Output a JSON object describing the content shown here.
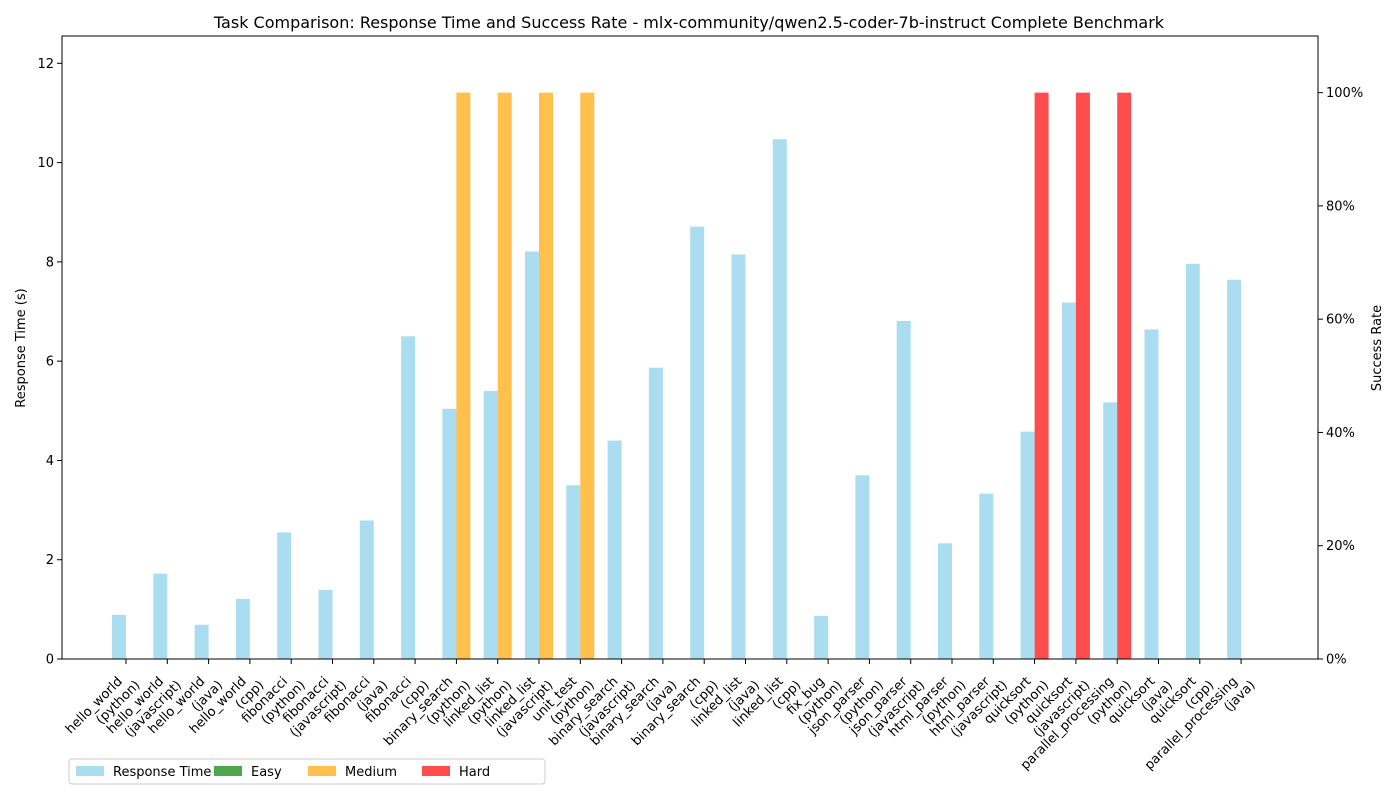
{
  "chart_data": {
    "type": "bar",
    "title": "Task Comparison: Response Time and Success Rate - mlx-community/qwen2.5-coder-7b-instruct Complete Benchmark",
    "ylabel": "Response Time (s)",
    "y2label": "Success Rate",
    "ylim": [
      0,
      12.55
    ],
    "y2lim": [
      0,
      1.1
    ],
    "yticks": [
      "0",
      "2",
      "4",
      "6",
      "8",
      "10",
      "12"
    ],
    "y2ticks": [
      "0%",
      "20%",
      "40%",
      "60%",
      "80%",
      "100%"
    ],
    "legend_position": "below-left",
    "colors": {
      "response": "#87CEEB",
      "easy": "#008000",
      "medium": "#FFA500",
      "hard": "#FF0000"
    },
    "categories": [
      [
        "hello_world",
        "(python)"
      ],
      [
        "hello_world",
        "(javascript)"
      ],
      [
        "hello_world",
        "(java)"
      ],
      [
        "hello_world",
        "(cpp)"
      ],
      [
        "fibonacci",
        "(python)"
      ],
      [
        "fibonacci",
        "(javascript)"
      ],
      [
        "fibonacci",
        "(java)"
      ],
      [
        "fibonacci",
        "(cpp)"
      ],
      [
        "binary_search",
        "(python)"
      ],
      [
        "linked_list",
        "(python)"
      ],
      [
        "linked_list",
        "(javascript)"
      ],
      [
        "unit_test",
        "(python)"
      ],
      [
        "binary_search",
        "(javascript)"
      ],
      [
        "binary_search",
        "(java)"
      ],
      [
        "binary_search",
        "(cpp)"
      ],
      [
        "linked_list",
        "(java)"
      ],
      [
        "linked_list",
        "(cpp)"
      ],
      [
        "fix_bug",
        "(python)"
      ],
      [
        "json_parser",
        "(python)"
      ],
      [
        "json_parser",
        "(javascript)"
      ],
      [
        "html_parser",
        "(python)"
      ],
      [
        "html_parser",
        "(javascript)"
      ],
      [
        "quicksort",
        "(python)"
      ],
      [
        "quicksort",
        "(javascript)"
      ],
      [
        "parallel_processing",
        "(python)"
      ],
      [
        "quicksort",
        "(java)"
      ],
      [
        "quicksort",
        "(cpp)"
      ],
      [
        "parallel_processing",
        "(java)"
      ]
    ],
    "series": [
      {
        "name": "Response Time",
        "values": [
          0.89,
          1.72,
          0.69,
          1.21,
          2.55,
          1.39,
          2.79,
          6.5,
          5.04,
          5.4,
          8.21,
          3.5,
          4.4,
          5.87,
          8.71,
          8.15,
          10.47,
          0.87,
          3.7,
          6.81,
          2.33,
          3.33,
          4.58,
          7.18,
          5.17,
          6.64,
          7.96,
          7.64
        ]
      },
      {
        "name": "Success Rate",
        "values": [
          0,
          0,
          0,
          0,
          0,
          0,
          0,
          0,
          1,
          1,
          1,
          1,
          0,
          0,
          0,
          0,
          0,
          0,
          0,
          0,
          0,
          0,
          1,
          1,
          1,
          0,
          0,
          0
        ],
        "difficulty": [
          "easy",
          "easy",
          "easy",
          "easy",
          "easy",
          "easy",
          "easy",
          "easy",
          "medium",
          "medium",
          "medium",
          "medium",
          "easy",
          "easy",
          "easy",
          "easy",
          "easy",
          "easy",
          "easy",
          "easy",
          "easy",
          "easy",
          "hard",
          "hard",
          "hard",
          "easy",
          "easy",
          "easy"
        ]
      }
    ],
    "legend": [
      {
        "label": "Response Time",
        "color_key": "response"
      },
      {
        "label": "Easy",
        "color_key": "easy"
      },
      {
        "label": "Medium",
        "color_key": "medium"
      },
      {
        "label": "Hard",
        "color_key": "hard"
      }
    ]
  }
}
